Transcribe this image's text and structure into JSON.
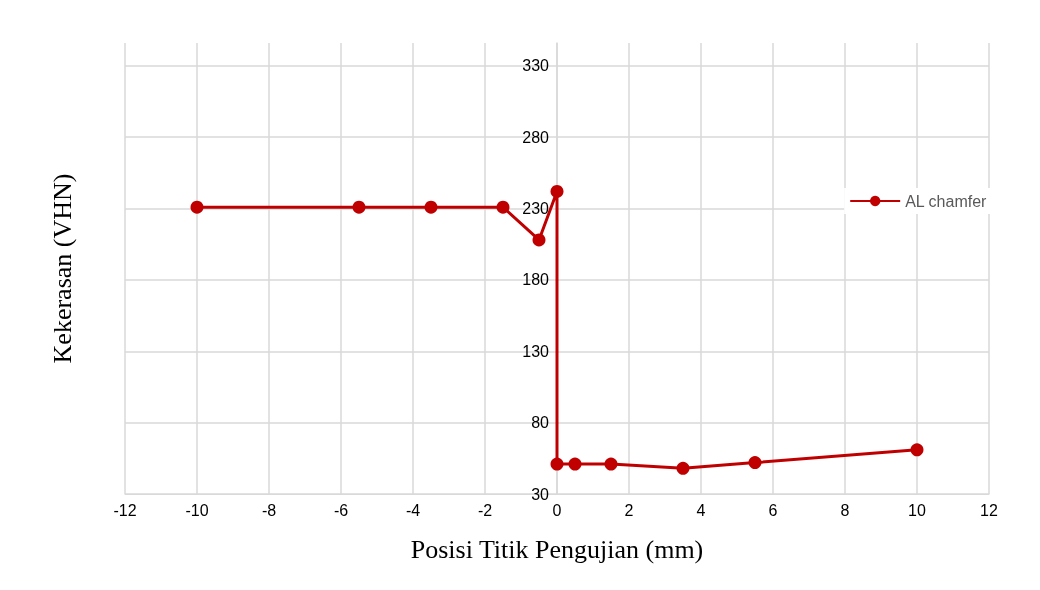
{
  "chart_data": {
    "type": "line",
    "xlabel": "Posisi Titik Pengujian (mm)",
    "ylabel": "Kekerasan (VHN)",
    "series": [
      {
        "name": "AL chamfer",
        "color": "#c00000",
        "x": [
          -10,
          -5.5,
          -3.5,
          -1.5,
          -0.5,
          0,
          0,
          0.5,
          1.5,
          3.5,
          5.5,
          10
        ],
        "values": [
          231,
          231,
          231,
          231,
          208,
          242,
          51,
          51,
          51,
          48,
          52,
          61
        ]
      }
    ],
    "xlim": [
      -12,
      12
    ],
    "xticks": [
      -12,
      -10,
      -8,
      -6,
      -4,
      -2,
      0,
      2,
      4,
      6,
      8,
      10,
      12
    ],
    "ylim": [
      30,
      346
    ],
    "yticks": [
      30,
      80,
      130,
      180,
      230,
      280,
      330
    ],
    "grid": true,
    "legend": "right",
    "marker": "circle",
    "line_style": "solid"
  }
}
